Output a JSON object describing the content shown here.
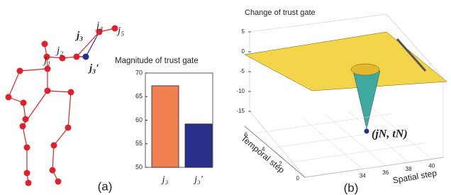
{
  "skeleton": {
    "labels": [
      "j₁",
      "j₂",
      "j₃",
      "j₄",
      "j₅",
      "j₃′"
    ]
  },
  "panel_labels": [
    "(a)",
    "(b)"
  ],
  "chart_data": [
    {
      "type": "bar",
      "title": "Magnitude of trust gate",
      "categories": [
        "j₃",
        "j₃′"
      ],
      "values": [
        67.3,
        59.2
      ],
      "colors": [
        "#f07f52",
        "#2b2f8c"
      ],
      "ylim": [
        50,
        70
      ],
      "yticks": [
        50,
        55,
        60,
        65,
        70
      ]
    },
    {
      "type": "surface",
      "title": "Change of trust gate",
      "xlabel": "Spatial step",
      "ylabel": "Temporal step",
      "xlim": [
        29,
        41
      ],
      "xticks": [
        34,
        36,
        38,
        40
      ],
      "ylim": [
        0,
        7
      ],
      "yticks": [
        0,
        2,
        4,
        6
      ],
      "zlim": [
        -15,
        5
      ],
      "zticks": [
        5,
        0,
        -5,
        -10,
        -15
      ],
      "annotation": "(jN, tN)"
    }
  ]
}
